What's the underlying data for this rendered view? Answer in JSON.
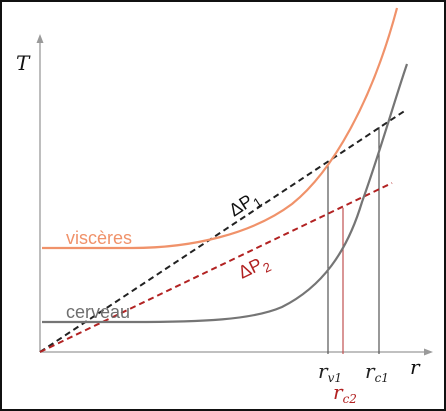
{
  "axes": {
    "y_label": "T",
    "x_label": "r"
  },
  "curves": {
    "visceres": {
      "label": "viscères",
      "color": "#f0926a"
    },
    "cerveau": {
      "label": "cerveau",
      "color": "#666666"
    }
  },
  "lines": {
    "dp1": {
      "label": "ΔP",
      "subscript": "1",
      "color": "#222222"
    },
    "dp2": {
      "label": "ΔP",
      "subscript": "2",
      "color": "#b22222"
    }
  },
  "markers": {
    "rv1": {
      "main": "r",
      "sub": "v1",
      "color": "#222222"
    },
    "rc1": {
      "main": "r",
      "sub": "c1",
      "color": "#222222"
    },
    "rc2": {
      "main": "r",
      "sub": "c2",
      "color": "#b22222"
    }
  }
}
